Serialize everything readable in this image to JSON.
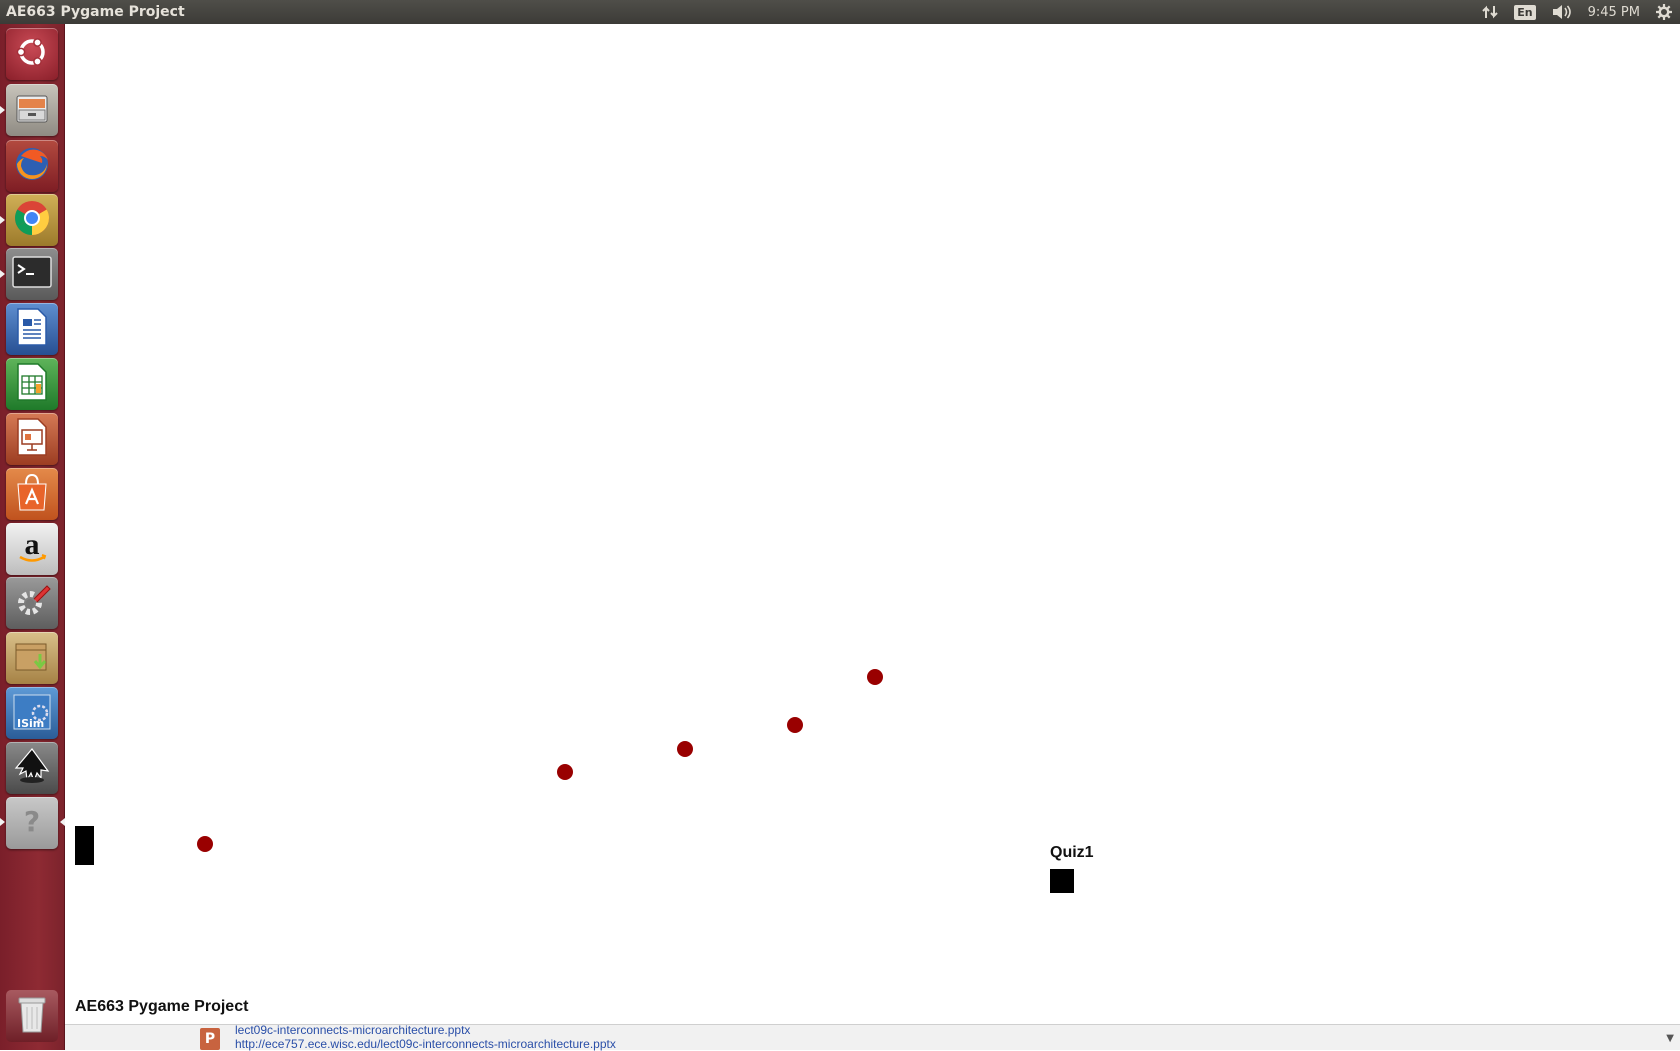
{
  "panel": {
    "title": "AE663 Pygame Project",
    "keyboard_layout": "En",
    "clock": "9:45 PM"
  },
  "launcher": {
    "items": [
      {
        "name": "Dash Home",
        "icon": "ubuntu-logo-icon"
      },
      {
        "name": "Files",
        "icon": "file-cabinet-icon"
      },
      {
        "name": "Firefox",
        "icon": "firefox-icon"
      },
      {
        "name": "Chrome",
        "icon": "chrome-icon"
      },
      {
        "name": "Terminal",
        "icon": "terminal-icon"
      },
      {
        "name": "LibreOffice Writer",
        "icon": "writer-icon"
      },
      {
        "name": "LibreOffice Calc",
        "icon": "calc-icon"
      },
      {
        "name": "LibreOffice Impress",
        "icon": "impress-icon"
      },
      {
        "name": "Software Center",
        "icon": "shopping-bag-icon"
      },
      {
        "name": "Amazon",
        "icon": "amazon-icon"
      },
      {
        "name": "System Settings",
        "icon": "settings-icon"
      },
      {
        "name": "Archive Manager",
        "icon": "archive-icon"
      },
      {
        "name": "ISim",
        "icon": "isim-icon"
      },
      {
        "name": "Inkscape",
        "icon": "inkscape-icon"
      },
      {
        "name": "Help",
        "icon": "help-icon"
      },
      {
        "name": "Trash",
        "icon": "trash-icon"
      }
    ]
  },
  "game": {
    "quiz_label": "Quiz1",
    "caption": "AE663 Pygame Project"
  },
  "downloads": {
    "file_name": "lect09c-interconnects-microarchitecture.pptx",
    "url": "http://ece757.ece.wisc.edu/lect09c-interconnects-microarchitecture.pptx"
  },
  "colors": {
    "launcher": "#8e2a33",
    "dot": "#990000",
    "panel": "#3c3b37"
  }
}
